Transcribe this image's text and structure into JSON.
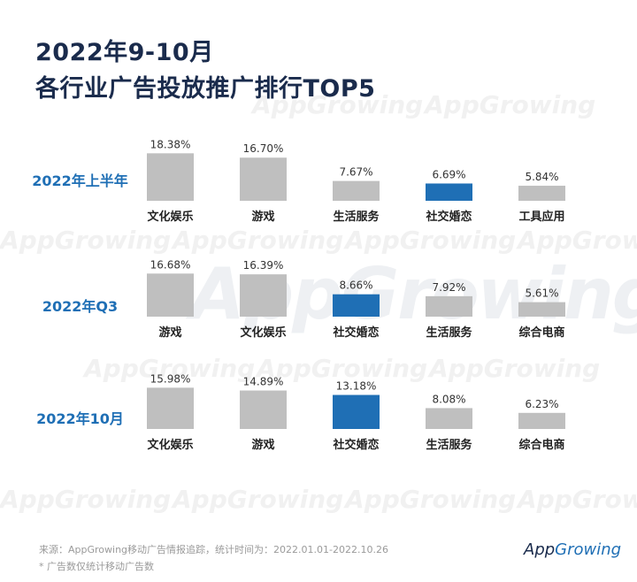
{
  "title_line1": "2022年9-10月",
  "title_line2": "各行业广告投放推广排行TOP5",
  "watermark": "AppGrowing",
  "colors": {
    "bar_default": "#bfbfbf",
    "bar_highlight": "#1f6fb5",
    "title": "#1a2b4c",
    "row_label": "#1f6fb5"
  },
  "chart_data": [
    {
      "type": "bar",
      "title": "2022年上半年",
      "categories": [
        "文化娱乐",
        "游戏",
        "生活服务",
        "社交婚恋",
        "工具应用"
      ],
      "values": [
        18.38,
        16.7,
        7.67,
        6.69,
        5.84
      ],
      "value_labels": [
        "18.38%",
        "16.70%",
        "7.67%",
        "6.69%",
        "5.84%"
      ],
      "highlight": "社交婚恋"
    },
    {
      "type": "bar",
      "title": "2022年Q3",
      "categories": [
        "游戏",
        "文化娱乐",
        "社交婚恋",
        "生活服务",
        "综合电商"
      ],
      "values": [
        16.68,
        16.39,
        8.66,
        7.92,
        5.61
      ],
      "value_labels": [
        "16.68%",
        "16.39%",
        "8.66%",
        "7.92%",
        "5.61%"
      ],
      "highlight": "社交婚恋"
    },
    {
      "type": "bar",
      "title": "2022年10月",
      "categories": [
        "文化娱乐",
        "游戏",
        "社交婚恋",
        "生活服务",
        "综合电商"
      ],
      "values": [
        15.98,
        14.89,
        13.18,
        8.08,
        6.23
      ],
      "value_labels": [
        "15.98%",
        "14.89%",
        "13.18%",
        "8.08%",
        "6.23%"
      ],
      "highlight": "社交婚恋"
    }
  ],
  "footer": {
    "source": "来源：AppGrowing移动广告情报追踪，统计时间为：2022.01.01-2022.10.26",
    "note": "* 广告数仅统计移动广告数"
  },
  "logo": {
    "part1": "App",
    "part2": "Growing"
  }
}
